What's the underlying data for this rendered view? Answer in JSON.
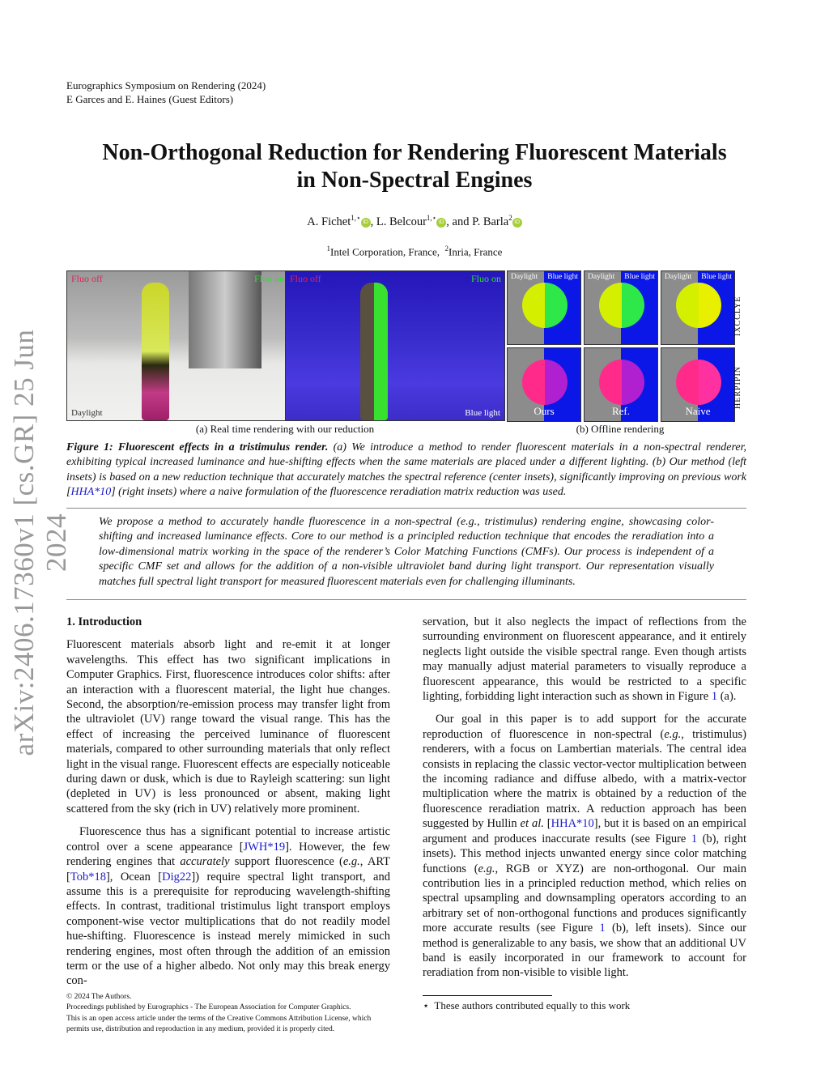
{
  "header": {
    "venue": "Eurographics Symposium on Rendering (2024)",
    "editors": "E Garces and E. Haines (Guest Editors)"
  },
  "title": {
    "line1": "Non-Orthogonal Reduction for Rendering Fluorescent Materials",
    "line2": "in Non-Spectral Engines"
  },
  "authors": [
    {
      "name": "A. Fichet",
      "sup": "1,⋆"
    },
    {
      "name": "L. Belcour",
      "sup": "1,⋆"
    },
    {
      "name": "P. Barla",
      "sup": "2"
    }
  ],
  "authors_sep": {
    "comma": ", ",
    "and": ", and "
  },
  "orcid_label": "iD",
  "affiliations": [
    {
      "sup": "1",
      "name": "Intel Corporation, France,"
    },
    {
      "sup": "2",
      "name": "Inria, France"
    }
  ],
  "arxiv_stamp": "arXiv:2406.17360v1  [cs.GR]  25 Jun 2024",
  "figure": {
    "left_panel": {
      "fluo_off": "Fluo off",
      "fluo_on": "Fluo on",
      "light": "Daylight"
    },
    "right_panel": {
      "fluo_off": "Fluo off",
      "fluo_on": "Fluo on",
      "light": "Blue light"
    },
    "sphere_top_labels": [
      "Daylight",
      "Blue light"
    ],
    "row_labels": [
      "IXCCLYE",
      "HERPIPIN"
    ],
    "method_labels": [
      "Ours",
      "Ref.",
      "Naive"
    ],
    "subcaption_a": "(a) Real time rendering with our reduction",
    "subcaption_b": "(b) Offline rendering",
    "colors": {
      "fluo_off": "#e0245a",
      "fluo_on": "#33dd33",
      "blue": "#0a17e6",
      "yellow": "#d4f000",
      "pink": "#ff2a8a"
    }
  },
  "caption": [
    {
      "t": "Figure 1: ",
      "s": "b"
    },
    {
      "t": "Fluorescent effects in a tristimulus render.",
      "s": "bi"
    },
    {
      "t": " (a) We introduce a method to render fluorescent materials in a non-spectral renderer, exhibiting typical increased luminance and hue-shifting effects when the same materials are placed under a different lighting. (b) Our method (left insets) is based on a new reduction technique that accurately matches the spectral reference (center insets), significantly improving on previous work ["
    },
    {
      "t": "HHA*10",
      "s": "c"
    },
    {
      "t": "] (right insets) where a naive formulation of the fluorescence reradiation matrix reduction was used."
    }
  ],
  "abstract": "We propose a method to accurately handle fluorescence in a non-spectral (e.g., tristimulus) rendering engine, showcasing color-shifting and increased luminance effects. Core to our method is a principled reduction technique that encodes the reradiation into a low-dimensional matrix working in the space of the renderer’s Color Matching Functions (CMFs). Our process is independent of a specific CMF set and allows for the addition of a non-visible ultraviolet band during light transport. Our representation visually matches full spectral light transport for measured fluorescent materials even for challenging illuminants.",
  "section_title": "1.  Introduction",
  "left_col": [
    [
      {
        "t": "Fluorescent materials absorb light and re-emit it at longer wavelengths. This effect has two significant implications in Computer Graphics. First, fluorescence introduces color shifts: after an interaction with a fluorescent material, the light hue changes. Second, the absorption/re-emission process may transfer light from the ultraviolet (UV) range toward the visual range. This has the effect of increasing the perceived luminance of fluorescent materials, compared to other surrounding materials that only reflect light in the visual range. Fluorescent effects are especially noticeable during dawn or dusk, which is due to Rayleigh scattering: sun light (depleted in UV) is less pronounced or absent, making light scattered from the sky (rich in UV) relatively more prominent."
      }
    ],
    [
      {
        "t": "Fluorescence thus has a significant potential to increase artistic control over a scene appearance ["
      },
      {
        "t": "JWH*19",
        "s": "c"
      },
      {
        "t": "]. However, the few rendering engines that "
      },
      {
        "t": "accurately",
        "s": "i"
      },
      {
        "t": " support fluorescence ("
      },
      {
        "t": "e.g.",
        "s": "i"
      },
      {
        "t": ", ART ["
      },
      {
        "t": "Tob*18",
        "s": "c"
      },
      {
        "t": "], Ocean ["
      },
      {
        "t": "Dig22",
        "s": "c"
      },
      {
        "t": "]) require spectral light transport, and assume this is a prerequisite for reproducing wavelength-shifting effects. In contrast, traditional tristimulus light transport employs component-wise vector multiplications that do not readily model hue-shifting. Fluorescence is instead merely mimicked in such rendering engines, most often through the addition of an emission term or the use of a higher albedo. Not only may this break energy con-"
      }
    ]
  ],
  "right_col": [
    [
      {
        "t": "servation, but it also neglects the impact of reflections from the surrounding environment on fluorescent appearance, and it entirely neglects light outside the visible spectral range. Even though artists may manually adjust material parameters to visually reproduce a fluorescent appearance, this would be restricted to a specific lighting, forbidding light interaction such as shown in Figure "
      },
      {
        "t": "1",
        "s": "c"
      },
      {
        "t": " (a)."
      }
    ],
    [
      {
        "t": "Our goal in this paper is to add support for the accurate reproduction of fluorescence in non-spectral ("
      },
      {
        "t": "e.g.",
        "s": "i"
      },
      {
        "t": ", tristimulus) renderers, with a focus on Lambertian materials. The central idea consists in replacing the classic vector-vector multiplication between the incoming radiance and diffuse albedo, with a matrix-vector multiplication where the matrix is obtained by a reduction of the fluorescence reradiation matrix. A reduction approach has been suggested by Hullin "
      },
      {
        "t": "et al.",
        "s": "i"
      },
      {
        "t": " ["
      },
      {
        "t": "HHA*10",
        "s": "c"
      },
      {
        "t": "], but it is based on an empirical argument and produces inaccurate results (see Figure "
      },
      {
        "t": "1",
        "s": "c"
      },
      {
        "t": " (b), right insets). This method injects unwanted energy since color matching functions ("
      },
      {
        "t": "e.g.",
        "s": "i"
      },
      {
        "t": ", RGB or XYZ) are non-orthogonal. Our main contribution lies in a principled reduction method, which relies on spectral upsampling and downsampling operators according to an arbitrary set of non-orthogonal functions and produces significantly more accurate results (see Figure "
      },
      {
        "t": "1",
        "s": "c"
      },
      {
        "t": " (b), left insets). Since our method is generalizable to any basis, we show that an additional UV band is easily incorporated in our framework to account for reradiation from non-visible to visible light."
      }
    ]
  ],
  "footer": {
    "copyright": "© 2024 The Authors.",
    "line2": "Proceedings published by Eurographics - The European Association for Computer Graphics.",
    "line3": "This is an open access article under the terms of the Creative Commons Attribution License, which",
    "line4": "permits use, distribution and reproduction in any medium, provided it is properly cited."
  },
  "footnote": {
    "mark": "⋆",
    "text": "These authors contributed equally to this work"
  }
}
